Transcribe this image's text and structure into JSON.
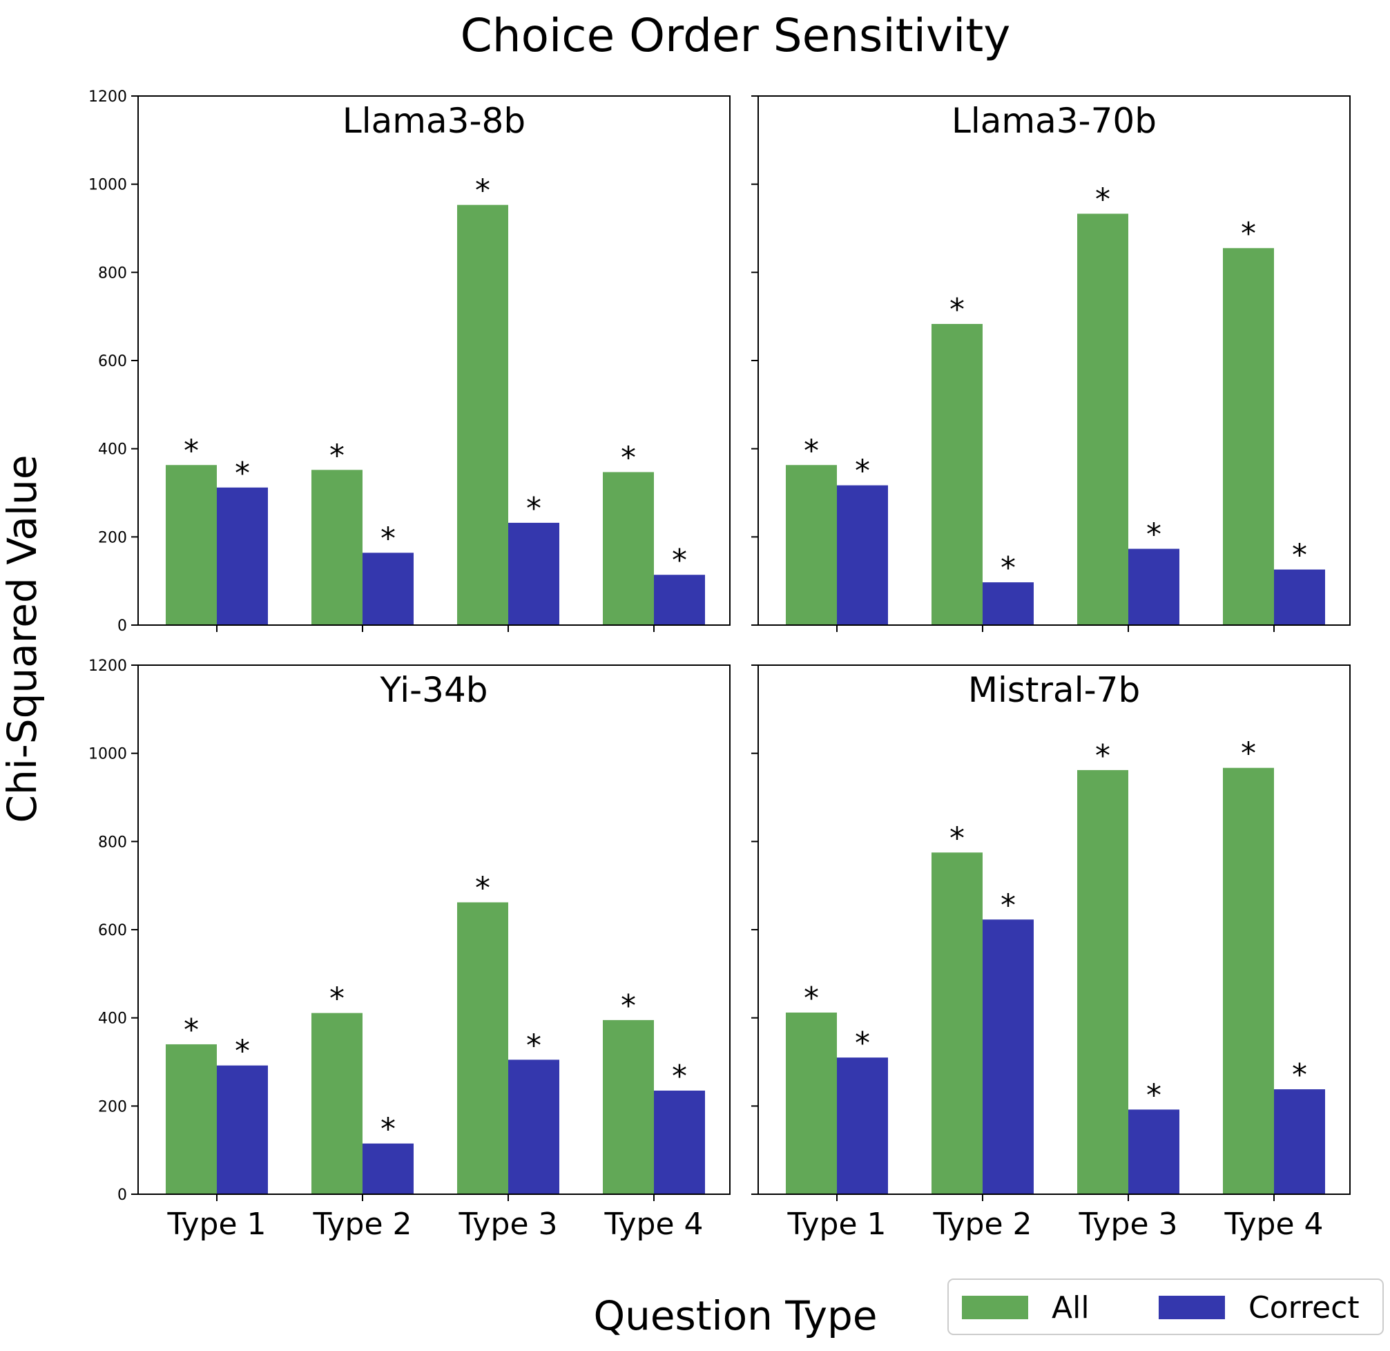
{
  "chart_data": {
    "type": "bar",
    "title": "Choice Order Sensitivity",
    "xlabel": "Question Type",
    "ylabel": "Chi-Squared Value",
    "categories": [
      "Type 1",
      "Type 2",
      "Type 3",
      "Type 4"
    ],
    "ylim": [
      0,
      1200
    ],
    "yticks": [
      0,
      200,
      400,
      600,
      800,
      1000,
      1200
    ],
    "legend": {
      "position": "bottom-right",
      "entries": [
        "All",
        "Correct"
      ]
    },
    "colors": {
      "All": "#62a857",
      "Correct": "#3437ad"
    },
    "significance_marker": "*",
    "panels": [
      {
        "title": "Llama3-8b",
        "series": [
          {
            "name": "All",
            "values": [
              363,
              352,
              953,
              347
            ],
            "significant": [
              true,
              true,
              true,
              true
            ]
          },
          {
            "name": "Correct",
            "values": [
              312,
              164,
              232,
              114
            ],
            "significant": [
              true,
              true,
              true,
              true
            ]
          }
        ]
      },
      {
        "title": "Llama3-70b",
        "series": [
          {
            "name": "All",
            "values": [
              363,
              683,
              933,
              855
            ],
            "significant": [
              true,
              true,
              true,
              true
            ]
          },
          {
            "name": "Correct",
            "values": [
              317,
              97,
              173,
              126
            ],
            "significant": [
              true,
              true,
              true,
              true
            ]
          }
        ]
      },
      {
        "title": "Yi-34b",
        "series": [
          {
            "name": "All",
            "values": [
              340,
              411,
              662,
              395
            ],
            "significant": [
              true,
              true,
              true,
              true
            ]
          },
          {
            "name": "Correct",
            "values": [
              292,
              115,
              305,
              235
            ],
            "significant": [
              true,
              true,
              true,
              true
            ]
          }
        ]
      },
      {
        "title": "Mistral-7b",
        "series": [
          {
            "name": "All",
            "values": [
              412,
              775,
              962,
              967
            ],
            "significant": [
              true,
              true,
              true,
              true
            ]
          },
          {
            "name": "Correct",
            "values": [
              310,
              623,
              192,
              238
            ],
            "significant": [
              true,
              true,
              true,
              true
            ]
          }
        ]
      }
    ]
  }
}
